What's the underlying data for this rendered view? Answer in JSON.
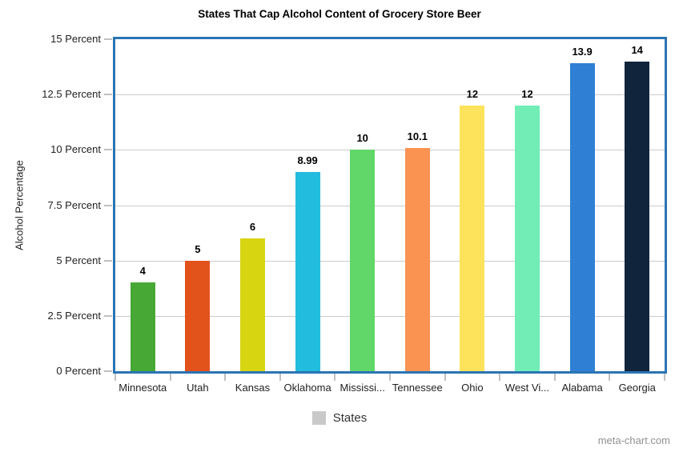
{
  "chart_data": {
    "type": "bar",
    "title": "States That Cap Alcohol Content of Grocery Store Beer",
    "xlabel": "",
    "ylabel": "Alcohol Percentage",
    "categories": [
      "Minnesota",
      "Utah",
      "Kansas",
      "Oklahoma",
      "Mississippi",
      "Tennessee",
      "Ohio",
      "West Virginia",
      "Alabama",
      "Georgia"
    ],
    "category_labels_shown": [
      "Minnesota",
      "Utah",
      "Kansas",
      "Oklahoma",
      "Mississi...",
      "Tennessee",
      "Ohio",
      "West Vi...",
      "Alabama",
      "Georgia"
    ],
    "values": [
      4,
      5,
      6,
      8.99,
      10,
      10.1,
      12,
      12,
      13.9,
      14
    ],
    "value_labels": [
      "4",
      "5",
      "6",
      "8.99",
      "10",
      "10.1",
      "12",
      "12",
      "13.9",
      "14"
    ],
    "bar_colors": [
      "#47A835",
      "#E2521B",
      "#D7D511",
      "#22BCDE",
      "#61D669",
      "#FA9352",
      "#FDE35B",
      "#71EDB5",
      "#2F80D5",
      "#10243C"
    ],
    "ylim": [
      0,
      15
    ],
    "ytick_interval": 2.5,
    "ytick_values": [
      0,
      2.5,
      5,
      7.5,
      10,
      12.5,
      15
    ],
    "ytick_labels": [
      "0 Percent",
      "2.5 Percent",
      "5 Percent",
      "7.5 Percent",
      "10 Percent",
      "12.5 Percent",
      "15 Percent"
    ],
    "grid": true,
    "legend": {
      "label": "States",
      "position": "bottom",
      "swatch_color": "#C9C9C9"
    }
  },
  "footer": {
    "watermark": "meta-chart.com"
  },
  "colors": {
    "plot_border": "#2B74B4",
    "gridline": "#CBCBCB",
    "tick": "#C0C0C0",
    "background": "#FFFFFF"
  }
}
